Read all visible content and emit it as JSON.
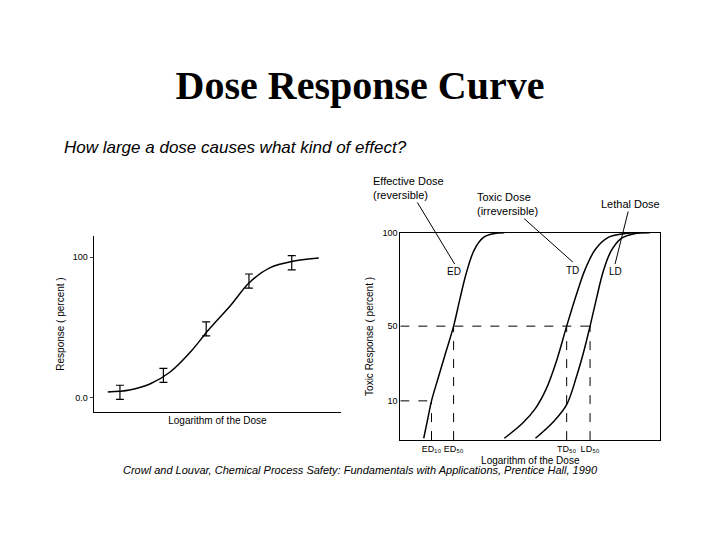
{
  "title": "Dose Response Curve",
  "subtitle": "How large a dose causes what kind of effect?",
  "source": "Crowl and Louvar, Chemical Process Safety: Fundamentals with Applications, Prentice Hall, 1990",
  "chart_data": [
    {
      "type": "scatter",
      "x_label": "Logarithm of the Dose",
      "y_label": "Response ( percent )",
      "xlim": [
        -0.5,
        10.5
      ],
      "ylim": [
        -10,
        115
      ],
      "yticks": [
        {
          "value": 0,
          "label": "0.0"
        },
        100
      ],
      "tick_labels": "y",
      "grid": false,
      "color": "#000000",
      "series": [
        {
          "type": "line",
          "x": [
            0.13,
            1.1,
            2.0,
            2.9,
            3.8,
            4.6,
            5.6,
            6.4,
            7.3,
            8.4,
            9.5
          ],
          "values": [
            4.3,
            5.7,
            9.9,
            18.4,
            32.6,
            48.2,
            66,
            81.6,
            92.2,
            97.2,
            99.3
          ]
        },
        {
          "type": "scatter",
          "marker": "none",
          "x": [
            0.67,
            2.6,
            4.5,
            6.4,
            8.3
          ],
          "values": [
            4,
            16,
            49,
            83,
            96
          ],
          "error": [
            5,
            5,
            5,
            5,
            5
          ]
        }
      ]
    },
    {
      "type": "line",
      "x_label": "Logarithm of the Dose",
      "y_label": "Toxic Response ( percent )",
      "xlim": [
        0,
        10
      ],
      "ylim": [
        -11,
        100
      ],
      "xticks": [
        {
          "value": 1.2,
          "label": "ED₁₀"
        },
        {
          "value": 2.05,
          "label": "ED₅₀"
        },
        {
          "value": 6.4,
          "label": "TD₅₀"
        },
        {
          "value": 7.3,
          "label": "LD₅₀"
        }
      ],
      "yticks": [
        10,
        50,
        100
      ],
      "grid": false,
      "color": "#000000",
      "guides": [
        {
          "x": 1.2,
          "y": 10
        },
        {
          "x": 2.05,
          "y": 50
        },
        {
          "x": 6.4,
          "y": 50
        },
        {
          "x": 7.3,
          "y": 50
        }
      ],
      "series": [
        {
          "name": "ED",
          "callout": "Effective Dose\n(reversible)",
          "x": [
            0.9,
            1.05,
            1.2,
            1.45,
            1.75,
            2.05,
            2.3,
            2.55,
            2.85,
            3.2,
            3.6,
            4.0
          ],
          "values": [
            -10,
            0,
            10,
            22,
            36,
            50,
            65,
            79,
            91,
            97.5,
            99.5,
            100
          ]
        },
        {
          "name": "TD",
          "callout": "Toxic Dose\n(irreversible)",
          "x": [
            4.0,
            4.7,
            5.2,
            5.6,
            6.0,
            6.4,
            6.8,
            7.1,
            7.5,
            8.0,
            8.6,
            9.2
          ],
          "values": [
            -10,
            -2,
            6,
            16,
            31,
            50,
            68,
            80,
            91,
            97.5,
            99.5,
            100
          ]
        },
        {
          "name": "LD",
          "callout": "Lethal Dose",
          "x": [
            5.2,
            5.9,
            6.4,
            6.8,
            7.05,
            7.3,
            7.55,
            7.8,
            8.1,
            8.5,
            9.0,
            9.6
          ],
          "values": [
            -10,
            -1,
            8,
            24,
            36,
            50,
            65,
            79,
            90,
            97,
            99.5,
            100
          ]
        }
      ]
    }
  ]
}
